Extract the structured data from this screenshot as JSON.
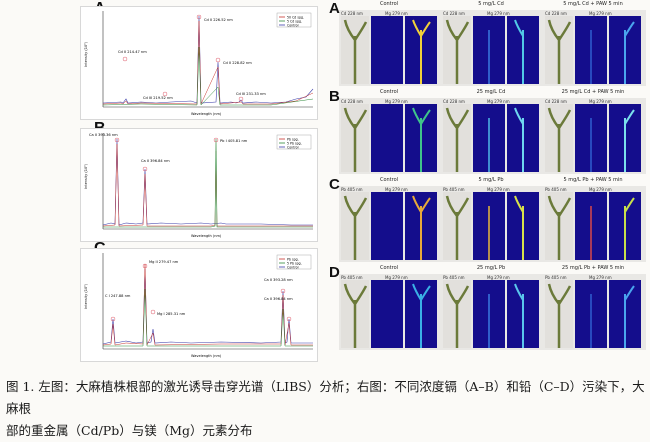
{
  "left": {
    "panelA": {
      "label": "A",
      "peaks": [
        {
          "text": "Cd II 214.47 nm"
        },
        {
          "text": "Cd II 226.52 nm"
        },
        {
          "text": "Cd II 228.82 nm"
        },
        {
          "text": "Cd III 219.52 nm"
        },
        {
          "text": "Cd III 231.33 nm"
        }
      ],
      "legend": [
        "50 Cd spg.",
        "5 Cd spg.",
        "Control"
      ],
      "xlabel": "Wavelength (nm)",
      "ylabel": "Intensity (10³)"
    },
    "panelB": {
      "label": "B",
      "peaks": [
        {
          "text": "Ca II 393.36 nm"
        },
        {
          "text": "Ca II 396.84 nm"
        },
        {
          "text": "Pb I 405.81 nm"
        }
      ],
      "legend": [
        "Pb spg.",
        "5 Pb spg.",
        "Control"
      ],
      "xlabel": "Wavelength (nm)",
      "ylabel": "Intensity (10³)"
    },
    "panelC": {
      "label": "C",
      "peaks": [
        {
          "text": "Mg II 279.47 nm"
        },
        {
          "text": "C I 247.88 nm"
        },
        {
          "text": "Mg I 285.31 nm"
        },
        {
          "text": "Ca II 393.28 nm"
        },
        {
          "text": "Ca II 396.84 nm"
        }
      ],
      "legend": [
        "Pb spg.",
        "5 Pb spg.",
        "Control"
      ],
      "xlabel": "Wavelength (nm)",
      "ylabel": "Intensity (10³)"
    }
  },
  "right": {
    "rows": [
      {
        "label": "A",
        "groups": [
          {
            "title": "Control",
            "ch1": "Cd 228 nm",
            "ch2": "Mg 279 nm"
          },
          {
            "title": "5 mg/L Cd",
            "ch1": "Cd 228 nm",
            "ch2": "Mg 279 nm"
          },
          {
            "title": "5 mg/L Cd + PAW 5 min",
            "ch1": "Cd 228 nm",
            "ch2": "Mg 279 nm"
          }
        ]
      },
      {
        "label": "B",
        "groups": [
          {
            "title": "Control",
            "ch1": "Cd 228 nm",
            "ch2": "Mg 279 nm"
          },
          {
            "title": "25 mg/L Cd",
            "ch1": "Cd 228 nm",
            "ch2": "Mg 279 nm"
          },
          {
            "title": "25 mg/L Cd + PAW 5 min",
            "ch1": "Cd 228 nm",
            "ch2": "Mg 279 nm"
          }
        ]
      },
      {
        "label": "C",
        "groups": [
          {
            "title": "Control",
            "ch1": "Pb 405 nm",
            "ch2": "Mg 279 nm"
          },
          {
            "title": "5 mg/L Pb",
            "ch1": "Pb 405 nm",
            "ch2": "Mg 279 nm"
          },
          {
            "title": "5 mg/L Pb + PAW 5 min",
            "ch1": "Pb 405 nm",
            "ch2": "Mg 279 nm"
          }
        ]
      },
      {
        "label": "D",
        "groups": [
          {
            "title": "Control",
            "ch1": "Pb 405 nm",
            "ch2": "Mg 279 nm"
          },
          {
            "title": "25 mg/L Pb",
            "ch1": "Pb 405 nm",
            "ch2": "Mg 279 nm"
          },
          {
            "title": "25 mg/L Pb + PAW 5 min",
            "ch1": "Pb 405 nm",
            "ch2": "Mg 279 nm"
          }
        ]
      }
    ]
  },
  "caption": {
    "line1": "图 1. 左图：大麻植株根部的激光诱导击穿光谱（LIBS）分析；右图：不同浓度镉（A–B）和铅（C–D）污染下，大麻根",
    "line2": "部的重金属（Cd/Pb）与镁（Mg）元素分布"
  }
}
